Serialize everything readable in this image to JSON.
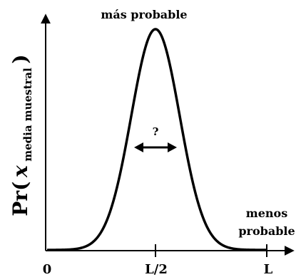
{
  "labels": {
    "peak": "más probable",
    "tail_line1": "menos",
    "tail_line2": "probable",
    "width_question": "?",
    "x_tick_min": "0",
    "x_tick_mid": "L/2",
    "x_tick_max": "L"
  },
  "y_axis_label": {
    "prefix": "Pr(",
    "variable": "x",
    "subscript": "media muestral",
    "suffix": ")"
  },
  "curve": {
    "shape": "gaussian",
    "center": "L/2",
    "stroke_color": "#000000"
  }
}
